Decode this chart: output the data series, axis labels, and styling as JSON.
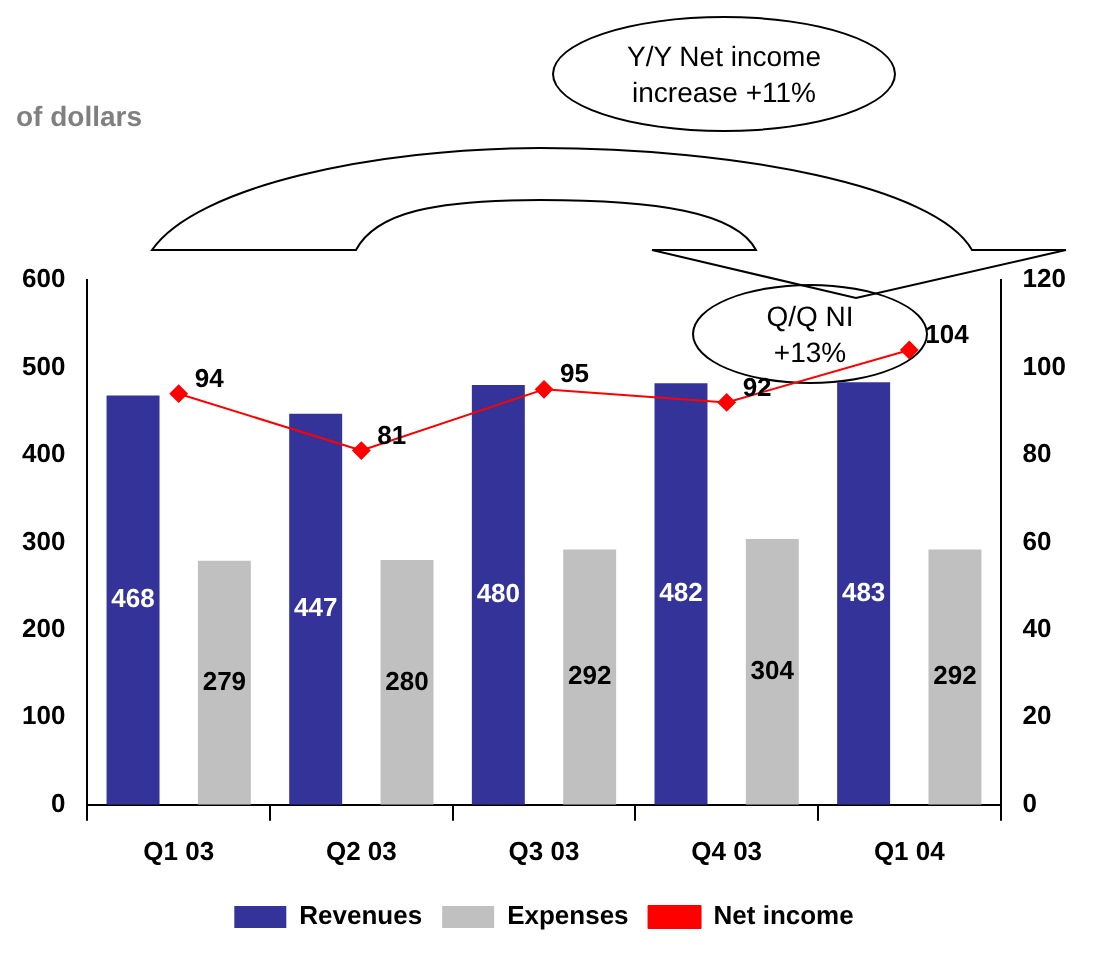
{
  "chart_data": {
    "type": "bar",
    "title": "of dollars",
    "categories": [
      "Q1 03",
      "Q2 03",
      "Q3 03",
      "Q4 03",
      "Q1 04"
    ],
    "series": [
      {
        "name": "Revenues",
        "color": "#333399",
        "values": [
          468,
          447,
          480,
          482,
          483
        ]
      },
      {
        "name": "Expenses",
        "color": "#c0c0c0",
        "values": [
          279,
          280,
          292,
          304,
          292
        ]
      },
      {
        "name": "Net income",
        "type": "line",
        "axis": "y2",
        "color": "#ff0000",
        "marker": "diamond",
        "values": [
          94,
          81,
          95,
          92,
          104
        ]
      }
    ],
    "ylim": [
      0,
      600
    ],
    "yticks": [
      0,
      100,
      200,
      300,
      400,
      500,
      600
    ],
    "y2lim": [
      0,
      120
    ],
    "y2ticks": [
      0,
      20,
      40,
      60,
      80,
      100,
      120
    ],
    "grid": false,
    "legend": "bottom",
    "data_labels": true,
    "annotations": [
      "Y/Y Net income increase +11%",
      "Q/Q NI +13%"
    ]
  }
}
